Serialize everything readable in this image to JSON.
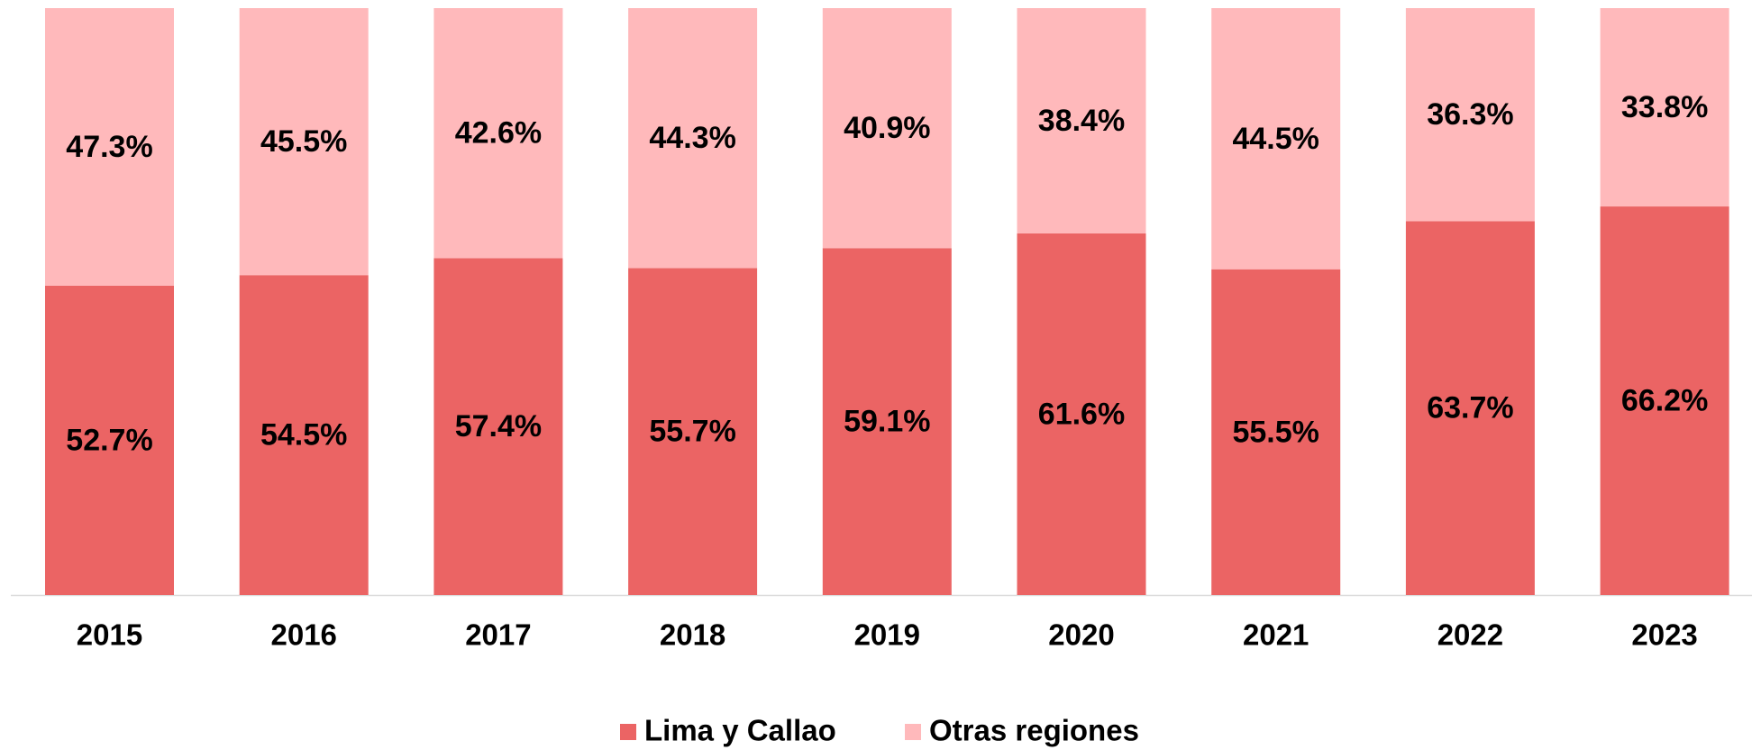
{
  "chart_data": {
    "type": "stacked_bar",
    "categories": [
      "2015",
      "2016",
      "2017",
      "2018",
      "2019",
      "2020",
      "2021",
      "2022",
      "2023"
    ],
    "series": [
      {
        "name": "Lima y Callao",
        "color": "#eb6464",
        "values": [
          52.7,
          54.5,
          57.4,
          55.7,
          59.1,
          61.6,
          55.5,
          63.7,
          66.2
        ],
        "value_labels": [
          "52.7%",
          "54.5%",
          "57.4%",
          "55.7%",
          "59.1%",
          "61.6%",
          "55.5%",
          "63.7%",
          "66.2%"
        ]
      },
      {
        "name": "Otras regiones",
        "color": "#ffb9bb",
        "values": [
          47.3,
          45.5,
          42.6,
          44.3,
          40.9,
          38.4,
          44.5,
          36.3,
          33.8
        ],
        "value_labels": [
          "47.3%",
          "45.5%",
          "42.6%",
          "44.3%",
          "40.9%",
          "38.4%",
          "44.5%",
          "36.3%",
          "33.8%"
        ]
      }
    ],
    "ylim": [
      0,
      100
    ]
  }
}
